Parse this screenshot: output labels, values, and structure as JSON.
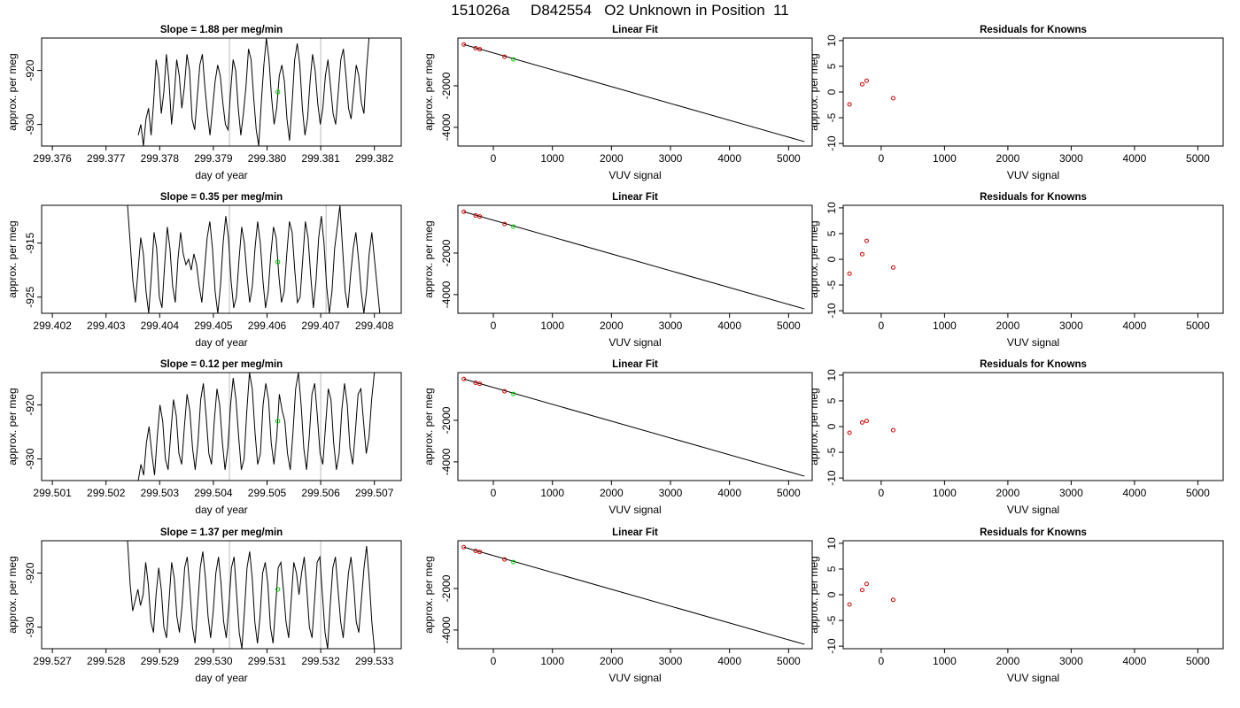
{
  "figure": {
    "title": "151026a     D842554   O2 Unknown in Position  11"
  },
  "style": {
    "trace_color": "#000000",
    "known_color": "#cc0000",
    "unknown_color": "#00cc00",
    "vline_color": "#bbbbbb",
    "frame_color": "#000000"
  },
  "chart_data": [
    {
      "type": "line",
      "row": 1,
      "panel": "time",
      "title": "Slope =  1.88  per meg/min",
      "xlabel": "day of year",
      "ylabel": "approx. per meg",
      "xlim": [
        299.3758,
        299.3825
      ],
      "ylim": [
        -934,
        -914
      ],
      "xticks": [
        299.376,
        299.377,
        299.378,
        299.379,
        299.38,
        299.381,
        299.382
      ],
      "xticklabels": [
        "299.376",
        "299.377",
        "299.378",
        "299.379",
        "299.380",
        "299.381",
        "299.382"
      ],
      "yticks": [
        -920,
        -930
      ],
      "yticklabels": [
        "-920",
        "-930"
      ],
      "vlines": [
        299.3793,
        299.381
      ],
      "series": [
        {
          "x_start": 299.3776,
          "x_end": 299.3819,
          "y": [
            -932,
            -930,
            -934,
            -929,
            -927,
            -932,
            -926,
            -918,
            -921,
            -928,
            -924,
            -917,
            -922,
            -930,
            -925,
            -918,
            -921,
            -927,
            -923,
            -917,
            -920,
            -929,
            -931,
            -925,
            -919,
            -917,
            -923,
            -928,
            -932,
            -927,
            -922,
            -919,
            -921,
            -926,
            -930,
            -931,
            -924,
            -918,
            -920,
            -927,
            -932,
            -928,
            -923,
            -916,
            -918,
            -925,
            -931,
            -934,
            -926,
            -919,
            -914,
            -918,
            -925,
            -930,
            -927,
            -921,
            -919,
            -922,
            -929,
            -933,
            -926,
            -918,
            -915,
            -919,
            -927,
            -932,
            -929,
            -922,
            -917,
            -920,
            -926,
            -930,
            -927,
            -921,
            -918,
            -923,
            -928,
            -930,
            -924,
            -918,
            -916,
            -921,
            -927,
            -929,
            -924,
            -919,
            -921,
            -926,
            -928,
            -920,
            -914
          ]
        }
      ],
      "point": {
        "x": 299.3802,
        "y": -924
      }
    },
    {
      "type": "line",
      "row": 1,
      "panel": "fit",
      "title": "Linear Fit",
      "xlabel": "VUV signal",
      "ylabel": "approx. per meg",
      "xlim": [
        -600,
        5400
      ],
      "ylim": [
        -4900,
        300
      ],
      "xticks": [
        0,
        1000,
        2000,
        3000,
        4000,
        5000
      ],
      "xticklabels": [
        "0",
        "1000",
        "2000",
        "3000",
        "4000",
        "5000"
      ],
      "yticks": [
        -2000,
        -4000
      ],
      "yticklabels": [
        "-2000",
        "-4000"
      ],
      "line": {
        "x": [
          -500,
          5270
        ],
        "y": [
          -10,
          -4690
        ]
      },
      "knowns": [
        {
          "x": -500,
          "y": -10
        },
        {
          "x": -300,
          "y": -190
        },
        {
          "x": -230,
          "y": -240
        },
        {
          "x": 190,
          "y": -600
        }
      ],
      "unknown": {
        "x": 340,
        "y": -730
      }
    },
    {
      "type": "scatter",
      "row": 1,
      "panel": "resid",
      "title": "Residuals for Knowns",
      "xlabel": "VUV signal",
      "ylabel": "approx. per meg",
      "xlim": [
        -600,
        5400
      ],
      "ylim": [
        -10.5,
        10.5
      ],
      "xticks": [
        0,
        1000,
        2000,
        3000,
        4000,
        5000
      ],
      "xticklabels": [
        "0",
        "1000",
        "2000",
        "3000",
        "4000",
        "5000"
      ],
      "yticks": [
        10,
        5,
        0,
        -5,
        -10
      ],
      "yticklabels": [
        "10",
        "5",
        "0",
        "-5",
        "-10"
      ],
      "points": [
        {
          "x": -500,
          "y": -2.4
        },
        {
          "x": -300,
          "y": 1.5
        },
        {
          "x": -230,
          "y": 2.2
        },
        {
          "x": 190,
          "y": -1.2
        }
      ]
    },
    {
      "type": "line",
      "row": 2,
      "panel": "time",
      "title": "Slope =  0.35  per meg/min",
      "xlabel": "day of year",
      "ylabel": "approx. per meg",
      "xlim": [
        299.4018,
        299.4085
      ],
      "ylim": [
        -928,
        -908
      ],
      "xticks": [
        299.402,
        299.403,
        299.404,
        299.405,
        299.406,
        299.407,
        299.408
      ],
      "xticklabels": [
        "299.402",
        "299.403",
        "299.404",
        "299.405",
        "299.406",
        "299.407",
        "299.408"
      ],
      "yticks": [
        -915,
        -925
      ],
      "yticklabels": [
        "-915",
        "-925"
      ],
      "vlines": [
        299.4053,
        299.4071
      ],
      "series": [
        {
          "x_start": 299.4034,
          "x_end": 299.4081,
          "y": [
            -908,
            -915,
            -922,
            -926,
            -920,
            -914,
            -917,
            -924,
            -928,
            -921,
            -913,
            -916,
            -925,
            -927,
            -919,
            -912,
            -916,
            -923,
            -926,
            -918,
            -913,
            -917,
            -919,
            -918,
            -920,
            -917,
            -919,
            -923,
            -926,
            -920,
            -914,
            -911,
            -916,
            -924,
            -928,
            -923,
            -915,
            -910,
            -914,
            -922,
            -927,
            -925,
            -918,
            -912,
            -915,
            -921,
            -926,
            -923,
            -916,
            -911,
            -915,
            -922,
            -927,
            -924,
            -917,
            -912,
            -914,
            -921,
            -926,
            -924,
            -917,
            -911,
            -913,
            -920,
            -926,
            -925,
            -918,
            -911,
            -914,
            -921,
            -927,
            -922,
            -914,
            -910,
            -915,
            -923,
            -928,
            -924,
            -916,
            -912,
            -908,
            -916,
            -924,
            -927,
            -921,
            -916,
            -913,
            -918,
            -924,
            -928,
            -924,
            -917,
            -913,
            -918,
            -923,
            -928
          ]
        }
      ],
      "point": {
        "x": 299.4062,
        "y": -918.5
      }
    },
    {
      "type": "line",
      "row": 2,
      "panel": "fit",
      "title": "Linear Fit",
      "xlabel": "VUV signal",
      "ylabel": "approx. per meg",
      "xlim": [
        -600,
        5400
      ],
      "ylim": [
        -4900,
        300
      ],
      "xticks": [
        0,
        1000,
        2000,
        3000,
        4000,
        5000
      ],
      "xticklabels": [
        "0",
        "1000",
        "2000",
        "3000",
        "4000",
        "5000"
      ],
      "yticks": [
        -2000,
        -4000
      ],
      "yticklabels": [
        "-2000",
        "-4000"
      ],
      "line": {
        "x": [
          -500,
          5270
        ],
        "y": [
          -10,
          -4690
        ]
      },
      "knowns": [
        {
          "x": -500,
          "y": -10
        },
        {
          "x": -300,
          "y": -190
        },
        {
          "x": -230,
          "y": -240
        },
        {
          "x": 190,
          "y": -600
        }
      ],
      "unknown": {
        "x": 340,
        "y": -730
      }
    },
    {
      "type": "scatter",
      "row": 2,
      "panel": "resid",
      "title": "Residuals for Knowns",
      "xlabel": "VUV signal",
      "ylabel": "approx. per meg",
      "xlim": [
        -600,
        5400
      ],
      "ylim": [
        -10.5,
        10.5
      ],
      "xticks": [
        0,
        1000,
        2000,
        3000,
        4000,
        5000
      ],
      "xticklabels": [
        "0",
        "1000",
        "2000",
        "3000",
        "4000",
        "5000"
      ],
      "yticks": [
        10,
        5,
        0,
        -5,
        -10
      ],
      "yticklabels": [
        "10",
        "5",
        "0",
        "-5",
        "-10"
      ],
      "points": [
        {
          "x": -500,
          "y": -2.8
        },
        {
          "x": -300,
          "y": 1.0
        },
        {
          "x": -230,
          "y": 3.6
        },
        {
          "x": 190,
          "y": -1.6
        }
      ]
    },
    {
      "type": "line",
      "row": 3,
      "panel": "time",
      "title": "Slope =  0.12  per meg/min",
      "xlabel": "day of year",
      "ylabel": "approx. per meg",
      "xlim": [
        299.5008,
        299.5075
      ],
      "ylim": [
        -934,
        -914
      ],
      "xticks": [
        299.501,
        299.502,
        299.503,
        299.504,
        299.505,
        299.506,
        299.507
      ],
      "xticklabels": [
        "299.501",
        "299.502",
        "299.503",
        "299.504",
        "299.505",
        "299.506",
        "299.507"
      ],
      "yticks": [
        -920,
        -930
      ],
      "yticklabels": [
        "-920",
        "-930"
      ],
      "vlines": [
        299.5043,
        299.506
      ],
      "series": [
        {
          "x_start": 299.5026,
          "x_end": 299.507,
          "y": [
            -934,
            -931,
            -933,
            -927,
            -924,
            -929,
            -933,
            -926,
            -920,
            -923,
            -930,
            -932,
            -925,
            -919,
            -922,
            -929,
            -931,
            -924,
            -918,
            -921,
            -928,
            -932,
            -927,
            -919,
            -916,
            -922,
            -929,
            -931,
            -923,
            -917,
            -920,
            -927,
            -932,
            -928,
            -920,
            -915,
            -919,
            -926,
            -932,
            -930,
            -921,
            -914,
            -917,
            -925,
            -931,
            -929,
            -920,
            -916,
            -919,
            -927,
            -931,
            -926,
            -918,
            -921,
            -923,
            -929,
            -932,
            -925,
            -917,
            -914,
            -920,
            -928,
            -932,
            -926,
            -918,
            -916,
            -922,
            -929,
            -931,
            -924,
            -917,
            -919,
            -927,
            -932,
            -929,
            -921,
            -916,
            -920,
            -928,
            -931,
            -925,
            -918,
            -917,
            -923,
            -929,
            -926,
            -919,
            -914
          ]
        }
      ],
      "point": {
        "x": 299.5052,
        "y": -923
      }
    },
    {
      "type": "line",
      "row": 3,
      "panel": "fit",
      "title": "Linear Fit",
      "xlabel": "VUV signal",
      "ylabel": "approx. per meg",
      "xlim": [
        -600,
        5400
      ],
      "ylim": [
        -4900,
        300
      ],
      "xticks": [
        0,
        1000,
        2000,
        3000,
        4000,
        5000
      ],
      "xticklabels": [
        "0",
        "1000",
        "2000",
        "3000",
        "4000",
        "5000"
      ],
      "yticks": [
        -2000,
        -4000
      ],
      "yticklabels": [
        "-2000",
        "-4000"
      ],
      "line": {
        "x": [
          -500,
          5270
        ],
        "y": [
          -10,
          -4690
        ]
      },
      "knowns": [
        {
          "x": -500,
          "y": -10
        },
        {
          "x": -300,
          "y": -190
        },
        {
          "x": -230,
          "y": -240
        },
        {
          "x": 190,
          "y": -600
        }
      ],
      "unknown": {
        "x": 340,
        "y": -730
      }
    },
    {
      "type": "scatter",
      "row": 3,
      "panel": "resid",
      "title": "Residuals for Knowns",
      "xlabel": "VUV signal",
      "ylabel": "approx. per meg",
      "xlim": [
        -600,
        5400
      ],
      "ylim": [
        -10.5,
        10.5
      ],
      "xticks": [
        0,
        1000,
        2000,
        3000,
        4000,
        5000
      ],
      "xticklabels": [
        "0",
        "1000",
        "2000",
        "3000",
        "4000",
        "5000"
      ],
      "yticks": [
        10,
        5,
        0,
        -5,
        -10
      ],
      "yticklabels": [
        "10",
        "5",
        "0",
        "-5",
        "-10"
      ],
      "points": [
        {
          "x": -500,
          "y": -1.2
        },
        {
          "x": -300,
          "y": 0.8
        },
        {
          "x": -230,
          "y": 1.1
        },
        {
          "x": 190,
          "y": -0.7
        }
      ]
    },
    {
      "type": "line",
      "row": 4,
      "panel": "time",
      "title": "Slope =  1.37  per meg/min",
      "xlabel": "day of year",
      "ylabel": "approx. per meg",
      "xlim": [
        299.5268,
        299.5335
      ],
      "ylim": [
        -934,
        -914
      ],
      "xticks": [
        299.527,
        299.528,
        299.529,
        299.53,
        299.531,
        299.532,
        299.533
      ],
      "xticklabels": [
        "299.527",
        "299.528",
        "299.529",
        "299.530",
        "299.531",
        "299.532",
        "299.533"
      ],
      "yticks": [
        -920,
        -930
      ],
      "yticklabels": [
        "-920",
        "-930"
      ],
      "vlines": [
        299.5303,
        299.532
      ],
      "series": [
        {
          "x_start": 299.5284,
          "x_end": 299.533,
          "y": [
            -914,
            -922,
            -927,
            -925,
            -923,
            -926,
            -924,
            -918,
            -922,
            -929,
            -931,
            -924,
            -919,
            -923,
            -930,
            -932,
            -925,
            -918,
            -921,
            -928,
            -931,
            -926,
            -919,
            -917,
            -923,
            -930,
            -933,
            -926,
            -919,
            -916,
            -921,
            -928,
            -932,
            -927,
            -920,
            -917,
            -922,
            -929,
            -932,
            -926,
            -919,
            -917,
            -924,
            -931,
            -934,
            -927,
            -919,
            -916,
            -921,
            -929,
            -933,
            -928,
            -920,
            -918,
            -922,
            -930,
            -933,
            -926,
            -919,
            -918,
            -923,
            -929,
            -932,
            -925,
            -918,
            -920,
            -924,
            -920,
            -917,
            -923,
            -930,
            -932,
            -925,
            -918,
            -917,
            -924,
            -931,
            -934,
            -926,
            -919,
            -917,
            -923,
            -929,
            -932,
            -926,
            -920,
            -917,
            -922,
            -929,
            -931,
            -925,
            -919,
            -915,
            -921,
            -929,
            -934
          ]
        }
      ],
      "point": {
        "x": 299.5312,
        "y": -923
      }
    },
    {
      "type": "line",
      "row": 4,
      "panel": "fit",
      "title": "Linear Fit",
      "xlabel": "VUV signal",
      "ylabel": "approx. per meg",
      "xlim": [
        -600,
        5400
      ],
      "ylim": [
        -4900,
        300
      ],
      "xticks": [
        0,
        1000,
        2000,
        3000,
        4000,
        5000
      ],
      "xticklabels": [
        "0",
        "1000",
        "2000",
        "3000",
        "4000",
        "5000"
      ],
      "yticks": [
        -2000,
        -4000
      ],
      "yticklabels": [
        "-2000",
        "-4000"
      ],
      "line": {
        "x": [
          -500,
          5270
        ],
        "y": [
          -10,
          -4690
        ]
      },
      "knowns": [
        {
          "x": -500,
          "y": -10
        },
        {
          "x": -300,
          "y": -190
        },
        {
          "x": -230,
          "y": -240
        },
        {
          "x": 190,
          "y": -600
        }
      ],
      "unknown": {
        "x": 340,
        "y": -730
      }
    },
    {
      "type": "scatter",
      "row": 4,
      "panel": "resid",
      "title": "Residuals for Knowns",
      "xlabel": "VUV signal",
      "ylabel": "approx. per meg",
      "xlim": [
        -600,
        5400
      ],
      "ylim": [
        -10.5,
        10.5
      ],
      "xticks": [
        0,
        1000,
        2000,
        3000,
        4000,
        5000
      ],
      "xticklabels": [
        "0",
        "1000",
        "2000",
        "3000",
        "4000",
        "5000"
      ],
      "yticks": [
        10,
        5,
        0,
        -5,
        -10
      ],
      "yticklabels": [
        "10",
        "5",
        "0",
        "-5",
        "-10"
      ],
      "points": [
        {
          "x": -500,
          "y": -1.9
        },
        {
          "x": -300,
          "y": 0.9
        },
        {
          "x": -230,
          "y": 2.1
        },
        {
          "x": 190,
          "y": -1.0
        }
      ]
    }
  ]
}
